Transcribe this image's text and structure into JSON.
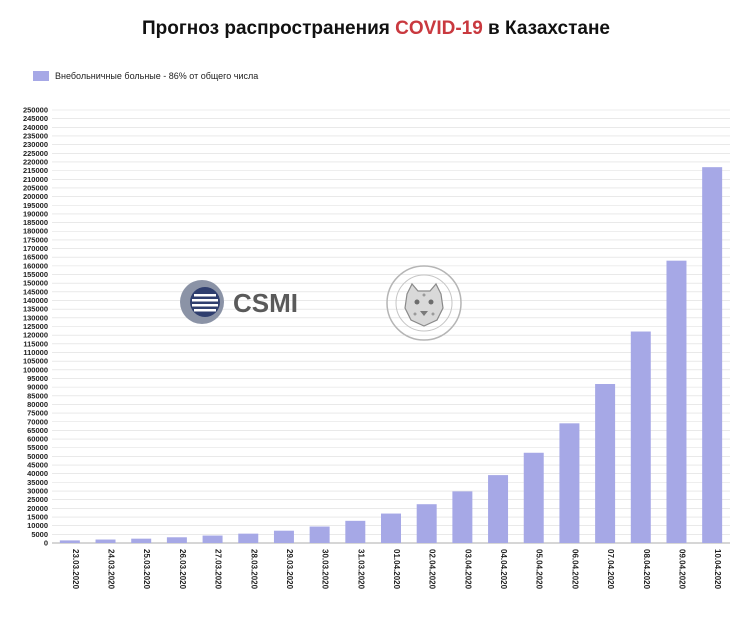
{
  "title": {
    "prefix": "Прогноз распространения ",
    "highlight": "COVID-19",
    "suffix": " в Казахстане"
  },
  "logos": {
    "csmi": "CSMI"
  },
  "colors": {
    "bar": "#a6a8e6",
    "accent": "#c9393f",
    "grid": "#dcdcdc"
  },
  "chart_data": {
    "type": "bar",
    "title": "Прогноз распространения COVID-19 в Казахстане",
    "xlabel": "",
    "ylabel": "",
    "ylim": [
      0,
      250000
    ],
    "ytick_step": 5000,
    "grid": true,
    "legend_position": "top-left",
    "categories": [
      "23.03.2020",
      "24.03.2020",
      "25.03.2020",
      "26.03.2020",
      "27.03.2020",
      "28.03.2020",
      "29.03.2020",
      "30.03.2020",
      "31.03.2020",
      "01.04.2020",
      "02.04.2020",
      "03.04.2020",
      "04.04.2020",
      "05.04.2020",
      "06.04.2020",
      "07.04.2020",
      "08.04.2020",
      "09.04.2020",
      "10.04.2020"
    ],
    "series": [
      {
        "name": "Внебольничные больные - 86%  от общего числа",
        "values": [
          1500,
          2000,
          2500,
          3300,
          4300,
          5400,
          7100,
          9500,
          12800,
          17000,
          22400,
          29800,
          39200,
          52100,
          69100,
          91800,
          122100,
          163000,
          217000
        ]
      }
    ]
  }
}
